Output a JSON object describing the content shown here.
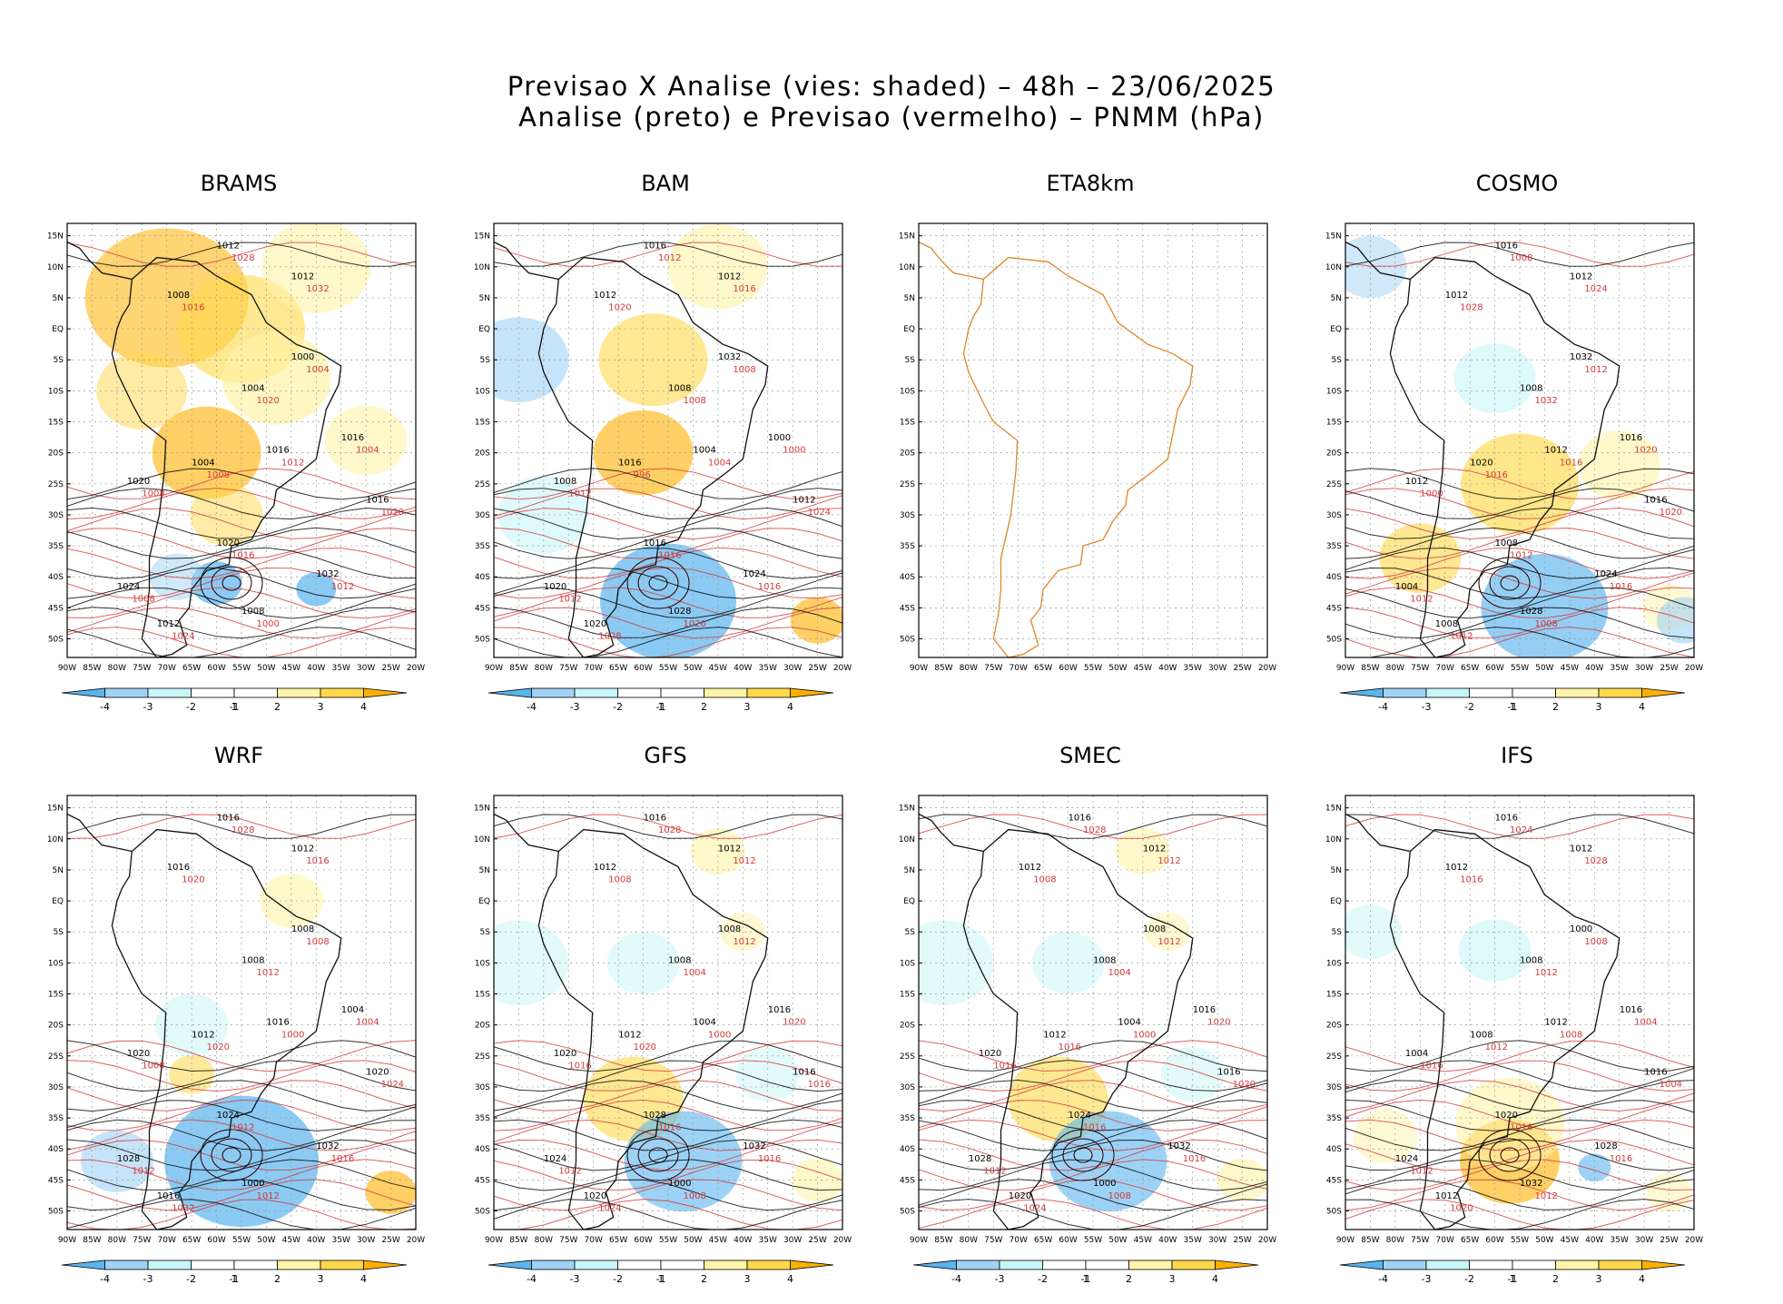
{
  "title": {
    "line1": "Previsao X Analise (vies: shaded) – 48h – 23/06/2025",
    "line2": "Analise (preto) e Previsao (vermelho) – PNMM (hPa)"
  },
  "colors": {
    "positive": [
      "#ffffff",
      "#fff4a8",
      "#ffd84a",
      "#ffb000"
    ],
    "negative": [
      "#ffffff",
      "#c8f5f8",
      "#a0d2f5",
      "#5ab4ee"
    ],
    "analysis_line": "#000000",
    "forecast_line": "#d43a3a",
    "coastline": "#e0852a"
  },
  "axes": {
    "lat_labels": [
      "15N",
      "10N",
      "5N",
      "EQ",
      "5S",
      "10S",
      "15S",
      "20S",
      "25S",
      "30S",
      "35S",
      "40S",
      "45S",
      "50S"
    ],
    "lon_labels": [
      "90W",
      "85W",
      "80W",
      "75W",
      "70W",
      "65W",
      "60W",
      "55W",
      "50W",
      "45W",
      "40W",
      "35W",
      "30W",
      "25W",
      "20W"
    ]
  },
  "colorbar_labels": [
    "-4",
    "-3",
    "-2",
    "-1",
    "1",
    "2",
    "3",
    "4"
  ],
  "panels": [
    {
      "name": "BRAMS",
      "bias": "warm",
      "contours_black": [
        "1012",
        "1012",
        "1008",
        "1004",
        "1016",
        "1016",
        "1020",
        "1020",
        "1024",
        "1032",
        "1008",
        "1000",
        "1004",
        "1016",
        "1012"
      ],
      "contours_red": [
        "1016",
        "1008",
        "1012",
        "1000",
        "1004",
        "1008",
        "1020",
        "1024",
        "1028",
        "1032",
        "1016",
        "1020",
        "1012",
        "1004",
        "1008"
      ]
    },
    {
      "name": "BAM",
      "bias": "warm_north_cold_south",
      "contours_black": [
        "1016",
        "1012",
        "1012",
        "1008",
        "1004",
        "1000",
        "1008",
        "1016",
        "1020",
        "1024",
        "1028",
        "1032",
        "1016",
        "1012",
        "1020"
      ],
      "contours_red": [
        "1016",
        "1012",
        "1016",
        "1020",
        "1008",
        "996",
        "1024",
        "1028",
        "1012",
        "1016",
        "1020",
        "1008",
        "1004",
        "1000",
        "1012"
      ]
    },
    {
      "name": "ETA8km",
      "bias": "none",
      "contours_black": [],
      "contours_red": []
    },
    {
      "name": "COSMO",
      "bias": "warm_center_cold_south",
      "contours_black": [
        "1016",
        "1012",
        "1012",
        "1008",
        "1012",
        "1016",
        "1012",
        "1008",
        "1004",
        "1024",
        "1028",
        "1032",
        "1020",
        "1016",
        "1008"
      ],
      "contours_red": [
        "1012",
        "1012",
        "1016",
        "1008",
        "1012",
        "1016",
        "1020",
        "1012",
        "1008",
        "1024",
        "1028",
        "1032",
        "1016",
        "1020",
        "1000"
      ]
    },
    {
      "name": "WRF",
      "bias": "cold_south",
      "contours_black": [
        "1016",
        "1012",
        "1016",
        "1008",
        "1016",
        "1004",
        "1020",
        "1024",
        "1028",
        "1032",
        "1000",
        "1008",
        "1012",
        "1020",
        "1016"
      ],
      "contours_red": [
        "1012",
        "1012",
        "1016",
        "1012",
        "1008",
        "1020",
        "1024",
        "1032",
        "1028",
        "1016",
        "1020",
        "1012",
        "1000",
        "1004",
        "1008"
      ]
    },
    {
      "name": "GFS",
      "bias": "mixed",
      "contours_black": [
        "1016",
        "1012",
        "1012",
        "1008",
        "1004",
        "1016",
        "1020",
        "1028",
        "1024",
        "1032",
        "1000",
        "1008",
        "1012",
        "1016",
        "1020"
      ],
      "contours_red": [
        "1016",
        "1012",
        "1016",
        "1008",
        "1012",
        "1020",
        "1016",
        "1024",
        "1028",
        "1012",
        "1008",
        "1004",
        "1000",
        "1020",
        "1016"
      ]
    },
    {
      "name": "SMEC",
      "bias": "mixed",
      "contours_black": [
        "1016",
        "1012",
        "1012",
        "1008",
        "1004",
        "1016",
        "1020",
        "1024",
        "1028",
        "1032",
        "1000",
        "1008",
        "1012",
        "1016",
        "1020"
      ],
      "contours_red": [
        "1016",
        "1012",
        "1016",
        "1008",
        "1012",
        "1016",
        "1020",
        "1024",
        "1028",
        "1012",
        "1008",
        "1004",
        "1000",
        "1020",
        "1016"
      ]
    },
    {
      "name": "IFS",
      "bias": "warm_south",
      "contours_black": [
        "1016",
        "1012",
        "1012",
        "1008",
        "1012",
        "1016",
        "1004",
        "1020",
        "1024",
        "1028",
        "1032",
        "1000",
        "1008",
        "1016",
        "1012"
      ],
      "contours_red": [
        "1016",
        "1012",
        "1016",
        "1012",
        "1008",
        "1012",
        "1004",
        "1020",
        "1024",
        "1028",
        "1016",
        "1012",
        "1008",
        "1004",
        "1016"
      ]
    }
  ]
}
